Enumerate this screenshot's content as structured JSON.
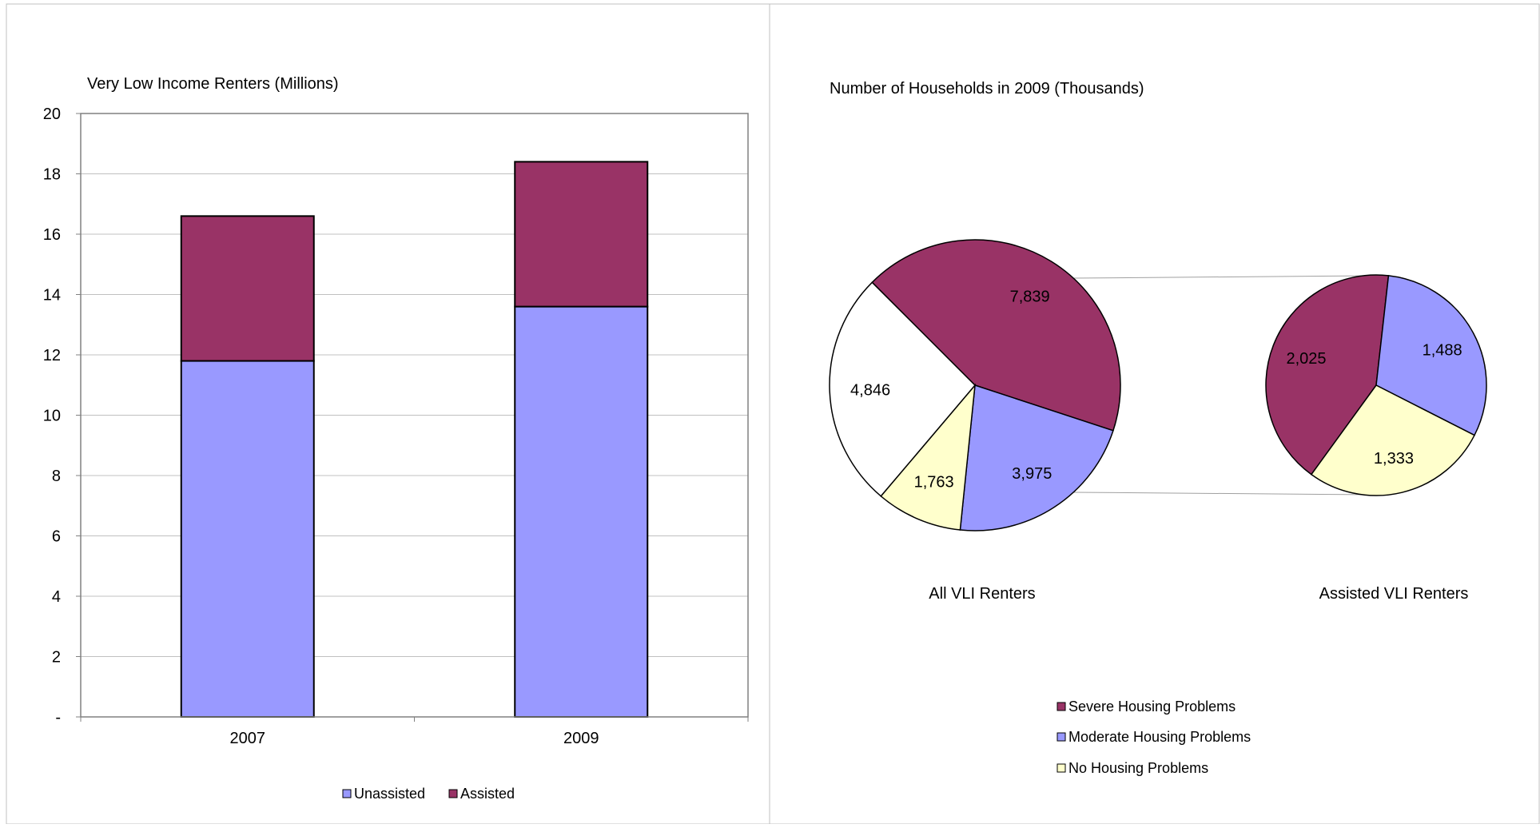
{
  "colors": {
    "severe": "#993366",
    "moderate": "#9999ff",
    "none": "#ffffcc",
    "remainder": "#ffffff",
    "gridline": "#c0c0c0",
    "border": "#c0c0c0"
  },
  "chart_data": [
    {
      "type": "bar",
      "stacked": true,
      "title": "Very Low Income Renters (Millions)",
      "categories": [
        "2007",
        "2009"
      ],
      "series": [
        {
          "name": "Unassisted",
          "values": [
            11.8,
            13.6
          ],
          "color": "#9999ff"
        },
        {
          "name": "Assisted",
          "values": [
            4.8,
            4.8
          ],
          "color": "#993366"
        }
      ],
      "ylim": [
        0,
        20
      ],
      "yticks": [
        "-",
        "2",
        "4",
        "6",
        "8",
        "10",
        "12",
        "14",
        "16",
        "18",
        "20"
      ],
      "grid": true,
      "legend": "bottom"
    },
    {
      "type": "pie",
      "title": "Number of Households in 2009 (Thousands)",
      "pies": [
        {
          "label": "All VLI Renters",
          "slices": [
            {
              "category": "Severe Housing Problems",
              "value": 7839,
              "label": "7,839",
              "color": "#993366"
            },
            {
              "category": "Moderate Housing Problems",
              "value": 3975,
              "label": "3,975",
              "color": "#9999ff"
            },
            {
              "category": "No Housing Problems",
              "value": 1763,
              "label": "1,763",
              "color": "#ffffcc"
            },
            {
              "category": "",
              "value": 4846,
              "label": "4,846",
              "color": "#ffffff"
            }
          ]
        },
        {
          "label": "Assisted VLI Renters",
          "slices": [
            {
              "category": "Severe Housing Problems",
              "value": 2025,
              "label": "2,025",
              "color": "#993366"
            },
            {
              "category": "Moderate Housing Problems",
              "value": 1488,
              "label": "1,488",
              "color": "#9999ff"
            },
            {
              "category": "No Housing Problems",
              "value": 1333,
              "label": "1,333",
              "color": "#ffffcc"
            }
          ]
        }
      ],
      "legend": {
        "placement": "bottom",
        "entries": [
          "Severe Housing Problems",
          "Moderate Housing Problems",
          "No Housing Problems"
        ]
      }
    }
  ]
}
